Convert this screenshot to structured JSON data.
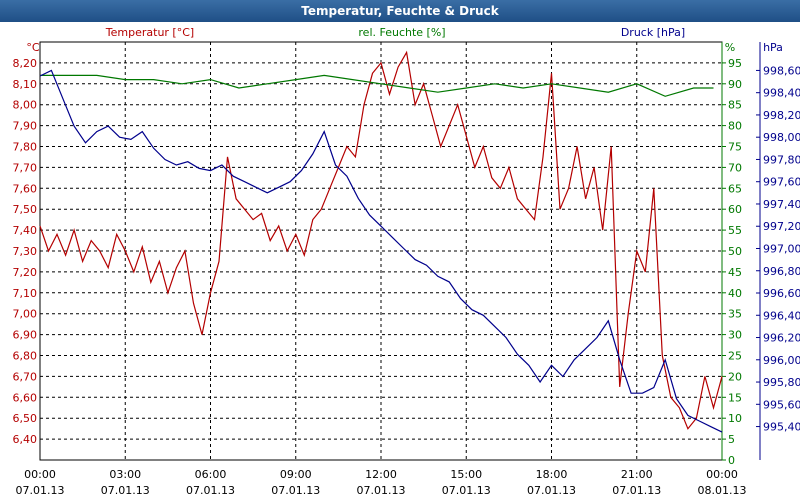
{
  "window": {
    "title": "Temperatur, Feuchte & Druck"
  },
  "colors": {
    "temperature": "#b40000",
    "humidity": "#007800",
    "pressure": "#00008c",
    "grid": "#000000"
  },
  "chart_data": {
    "type": "line",
    "title": "Temperatur, Feuchte & Druck",
    "x_tick_labels": [
      {
        "time": "00:00",
        "date": "07.01.13"
      },
      {
        "time": "03:00",
        "date": "07.01.13"
      },
      {
        "time": "06:00",
        "date": "07.01.13"
      },
      {
        "time": "09:00",
        "date": "07.01.13"
      },
      {
        "time": "12:00",
        "date": "07.01.13"
      },
      {
        "time": "15:00",
        "date": "07.01.13"
      },
      {
        "time": "18:00",
        "date": "07.01.13"
      },
      {
        "time": "21:00",
        "date": "07.01.13"
      },
      {
        "time": "00:00",
        "date": "08.01.13"
      }
    ],
    "xlim_hours": [
      0,
      24
    ],
    "grid": true,
    "axes": {
      "temperature": {
        "label": "Temperatur [°C]",
        "unit": "°C",
        "ylim": [
          6.35,
          8.3
        ],
        "ticks": [
          "8,20",
          "8,10",
          "8,00",
          "7,90",
          "7,80",
          "7,70",
          "7,60",
          "7,50",
          "7,40",
          "7,30",
          "7,20",
          "7,10",
          "7,00",
          "6,90",
          "6,80",
          "6,70",
          "6,60",
          "6,50",
          "6,40"
        ]
      },
      "humidity": {
        "label": "rel. Feuchte [%]",
        "unit": "%",
        "ylim": [
          0,
          100
        ],
        "ticks": [
          "95",
          "90",
          "85",
          "80",
          "75",
          "70",
          "65",
          "60",
          "55",
          "50",
          "45",
          "40",
          "35",
          "30",
          "25",
          "20",
          "15",
          "10",
          "5",
          "0"
        ]
      },
      "pressure": {
        "label": "Druck [hPa]",
        "unit": "hPa",
        "ylim": [
          995.2,
          998.8
        ],
        "ticks": [
          "998,60",
          "998,40",
          "998,20",
          "998,00",
          "997,80",
          "997,60",
          "997,40",
          "997,20",
          "997,00",
          "996,80",
          "996,60",
          "996,40",
          "996,20",
          "996,00",
          "995,80",
          "995,60",
          "995,40"
        ]
      }
    },
    "series": [
      {
        "name": "Temperatur [°C]",
        "axis": "temperature",
        "x": [
          0,
          0.3,
          0.6,
          0.9,
          1.2,
          1.5,
          1.8,
          2.1,
          2.4,
          2.7,
          3.0,
          3.3,
          3.6,
          3.9,
          4.2,
          4.5,
          4.8,
          5.1,
          5.4,
          5.7,
          6.0,
          6.3,
          6.6,
          6.9,
          7.2,
          7.5,
          7.8,
          8.1,
          8.4,
          8.7,
          9.0,
          9.3,
          9.6,
          9.9,
          10.2,
          10.5,
          10.8,
          11.1,
          11.4,
          11.7,
          12.0,
          12.3,
          12.6,
          12.9,
          13.2,
          13.5,
          13.8,
          14.1,
          14.4,
          14.7,
          15.0,
          15.3,
          15.6,
          15.9,
          16.2,
          16.5,
          16.8,
          17.1,
          17.4,
          17.7,
          18.0,
          18.3,
          18.6,
          18.9,
          19.2,
          19.5,
          19.8,
          20.1,
          20.4,
          20.7,
          21.0,
          21.3,
          21.6,
          21.9,
          22.2,
          22.5,
          22.8,
          23.1,
          23.4,
          23.7,
          24.0
        ],
        "values": [
          7.42,
          7.3,
          7.38,
          7.28,
          7.4,
          7.25,
          7.35,
          7.3,
          7.22,
          7.38,
          7.3,
          7.2,
          7.32,
          7.15,
          7.25,
          7.1,
          7.22,
          7.3,
          7.05,
          6.9,
          7.1,
          7.25,
          7.75,
          7.55,
          7.5,
          7.45,
          7.48,
          7.35,
          7.42,
          7.3,
          7.38,
          7.28,
          7.45,
          7.5,
          7.6,
          7.7,
          7.8,
          7.75,
          8.0,
          8.15,
          8.2,
          8.05,
          8.18,
          8.25,
          8.0,
          8.1,
          7.95,
          7.8,
          7.9,
          8.0,
          7.85,
          7.7,
          7.8,
          7.65,
          7.6,
          7.7,
          7.55,
          7.5,
          7.45,
          7.75,
          8.15,
          7.5,
          7.6,
          7.8,
          7.55,
          7.7,
          7.4,
          7.8,
          6.65,
          7.0,
          7.3,
          7.2,
          7.6,
          6.8,
          6.6,
          6.55,
          6.45,
          6.5,
          6.7,
          6.55,
          6.7
        ]
      },
      {
        "name": "rel. Feuchte [%]",
        "axis": "humidity",
        "x": [
          0,
          1,
          2,
          3,
          4,
          5,
          6,
          7,
          8,
          9,
          10,
          11,
          12,
          13,
          14,
          15,
          16,
          17,
          18,
          19,
          20,
          21,
          22,
          23,
          23.7
        ],
        "values": [
          92,
          92,
          92,
          91,
          91,
          90,
          91,
          89,
          90,
          91,
          92,
          91,
          90,
          89,
          88,
          89,
          90,
          89,
          90,
          89,
          88,
          90,
          87,
          89,
          89
        ]
      },
      {
        "name": "Druck [hPa]",
        "axis": "pressure",
        "x": [
          0,
          0.4,
          0.8,
          1.2,
          1.6,
          2.0,
          2.4,
          2.8,
          3.2,
          3.6,
          4.0,
          4.4,
          4.8,
          5.2,
          5.6,
          6.0,
          6.4,
          6.8,
          7.2,
          7.6,
          8.0,
          8.4,
          8.8,
          9.2,
          9.6,
          10.0,
          10.4,
          10.8,
          11.2,
          11.6,
          12.0,
          12.4,
          12.8,
          13.2,
          13.6,
          14.0,
          14.4,
          14.8,
          15.2,
          15.6,
          16.0,
          16.4,
          16.8,
          17.2,
          17.6,
          18.0,
          18.4,
          18.8,
          19.2,
          19.6,
          20.0,
          20.4,
          20.8,
          21.2,
          21.6,
          22.0,
          22.4,
          22.8,
          23.2,
          23.6,
          24.0
        ],
        "values": [
          998.55,
          998.6,
          998.35,
          998.1,
          997.95,
          998.05,
          998.1,
          998.0,
          997.98,
          998.05,
          997.9,
          997.8,
          997.75,
          997.78,
          997.72,
          997.7,
          997.75,
          997.65,
          997.6,
          997.55,
          997.5,
          997.55,
          997.6,
          997.7,
          997.85,
          998.05,
          997.75,
          997.65,
          997.45,
          997.3,
          997.2,
          997.1,
          997.0,
          996.9,
          996.85,
          996.75,
          996.7,
          996.55,
          996.45,
          996.4,
          996.3,
          996.2,
          996.05,
          995.95,
          995.8,
          995.95,
          995.85,
          996.0,
          996.1,
          996.2,
          996.35,
          996.0,
          995.7,
          995.7,
          995.75,
          996.0,
          995.65,
          995.5,
          995.45,
          995.4,
          995.35
        ]
      }
    ]
  }
}
